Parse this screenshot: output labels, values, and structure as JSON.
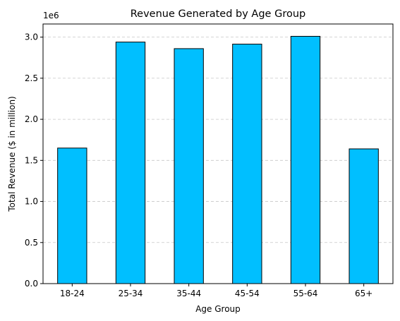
{
  "chart_data": {
    "type": "bar",
    "title": "Revenue Generated by Age Group",
    "xlabel": "Age Group",
    "ylabel": "Total Revenue ($ in million)",
    "offset_text": "1e6",
    "categories": [
      "18-24",
      "25-34",
      "35-44",
      "45-54",
      "55-64",
      "65+"
    ],
    "values": [
      1650000,
      2940000,
      2860000,
      2915000,
      3010000,
      1640000
    ],
    "ylim": [
      0,
      3160000
    ],
    "yticks": [
      0,
      500000,
      1000000,
      1500000,
      2000000,
      2500000,
      3000000
    ],
    "ytick_labels": [
      "0.0",
      "0.5",
      "1.0",
      "1.5",
      "2.0",
      "2.5",
      "3.0"
    ],
    "grid": {
      "y": true,
      "style": "dashed"
    },
    "bar_color": "#00BFFF",
    "edge_color": "#000000"
  }
}
